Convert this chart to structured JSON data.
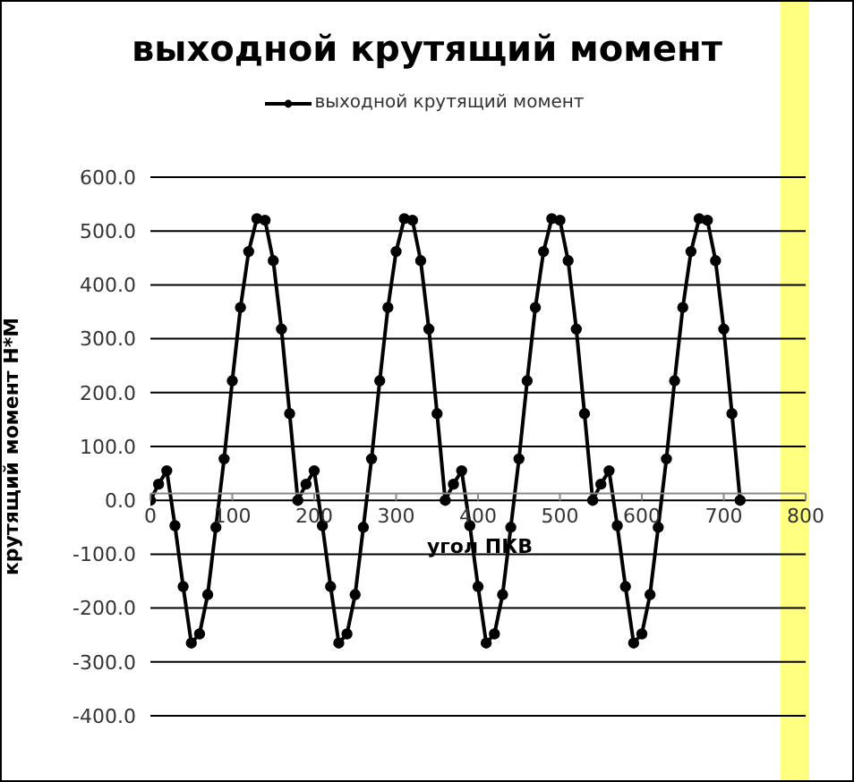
{
  "chart_data": {
    "type": "line",
    "title": "выходной крутящий момент",
    "xlabel": "угол ПКВ",
    "ylabel": "крутящий момент Н*М",
    "x": [
      0,
      10,
      20,
      30,
      40,
      50,
      60,
      70,
      80,
      90,
      100,
      110,
      120,
      130,
      140,
      150,
      160,
      170,
      180,
      190,
      200,
      210,
      220,
      230,
      240,
      250,
      260,
      270,
      280,
      290,
      300,
      310,
      320,
      330,
      340,
      350,
      360,
      370,
      380,
      390,
      400,
      410,
      420,
      430,
      440,
      450,
      460,
      470,
      480,
      490,
      500,
      510,
      520,
      530,
      540,
      550,
      560,
      570,
      580,
      590,
      600,
      610,
      620,
      630,
      640,
      650,
      660,
      670,
      680,
      690,
      700,
      710,
      720
    ],
    "series": [
      {
        "name": "выходной крутящий момент",
        "color": "#000000",
        "values": [
          0,
          30,
          55,
          -47,
          -160,
          -265,
          -248,
          -175,
          -50,
          77,
          222,
          358,
          462,
          523,
          520,
          445,
          318,
          161,
          0,
          30,
          55,
          -47,
          -160,
          -265,
          -248,
          -175,
          -50,
          77,
          222,
          358,
          462,
          523,
          520,
          445,
          318,
          161,
          0,
          30,
          55,
          -47,
          -160,
          -265,
          -248,
          -175,
          -50,
          77,
          222,
          358,
          462,
          523,
          520,
          445,
          318,
          161,
          0,
          30,
          55,
          -47,
          -160,
          -265,
          -248,
          -175,
          -50,
          77,
          222,
          358,
          462,
          523,
          520,
          445,
          318,
          161,
          0
        ]
      }
    ],
    "xlim": [
      0,
      800
    ],
    "xticks": [
      0,
      100,
      200,
      300,
      400,
      500,
      600,
      700,
      800
    ],
    "ylim": [
      -400,
      600
    ],
    "yticks": [
      {
        "value": -400,
        "label": "-400.0"
      },
      {
        "value": -300,
        "label": "-300.0"
      },
      {
        "value": -200,
        "label": "-200.0"
      },
      {
        "value": -100,
        "label": "-100.0"
      },
      {
        "value": 0,
        "label": "0.0"
      },
      {
        "value": 100,
        "label": "100.0"
      },
      {
        "value": 200,
        "label": "200.0"
      },
      {
        "value": 300,
        "label": "300.0"
      },
      {
        "value": 400,
        "label": "400.0"
      },
      {
        "value": 500,
        "label": "500.0"
      },
      {
        "value": 600,
        "label": "600.0"
      }
    ],
    "grid": "y",
    "legend": "top",
    "marker": "circle",
    "line_style": "solid"
  }
}
